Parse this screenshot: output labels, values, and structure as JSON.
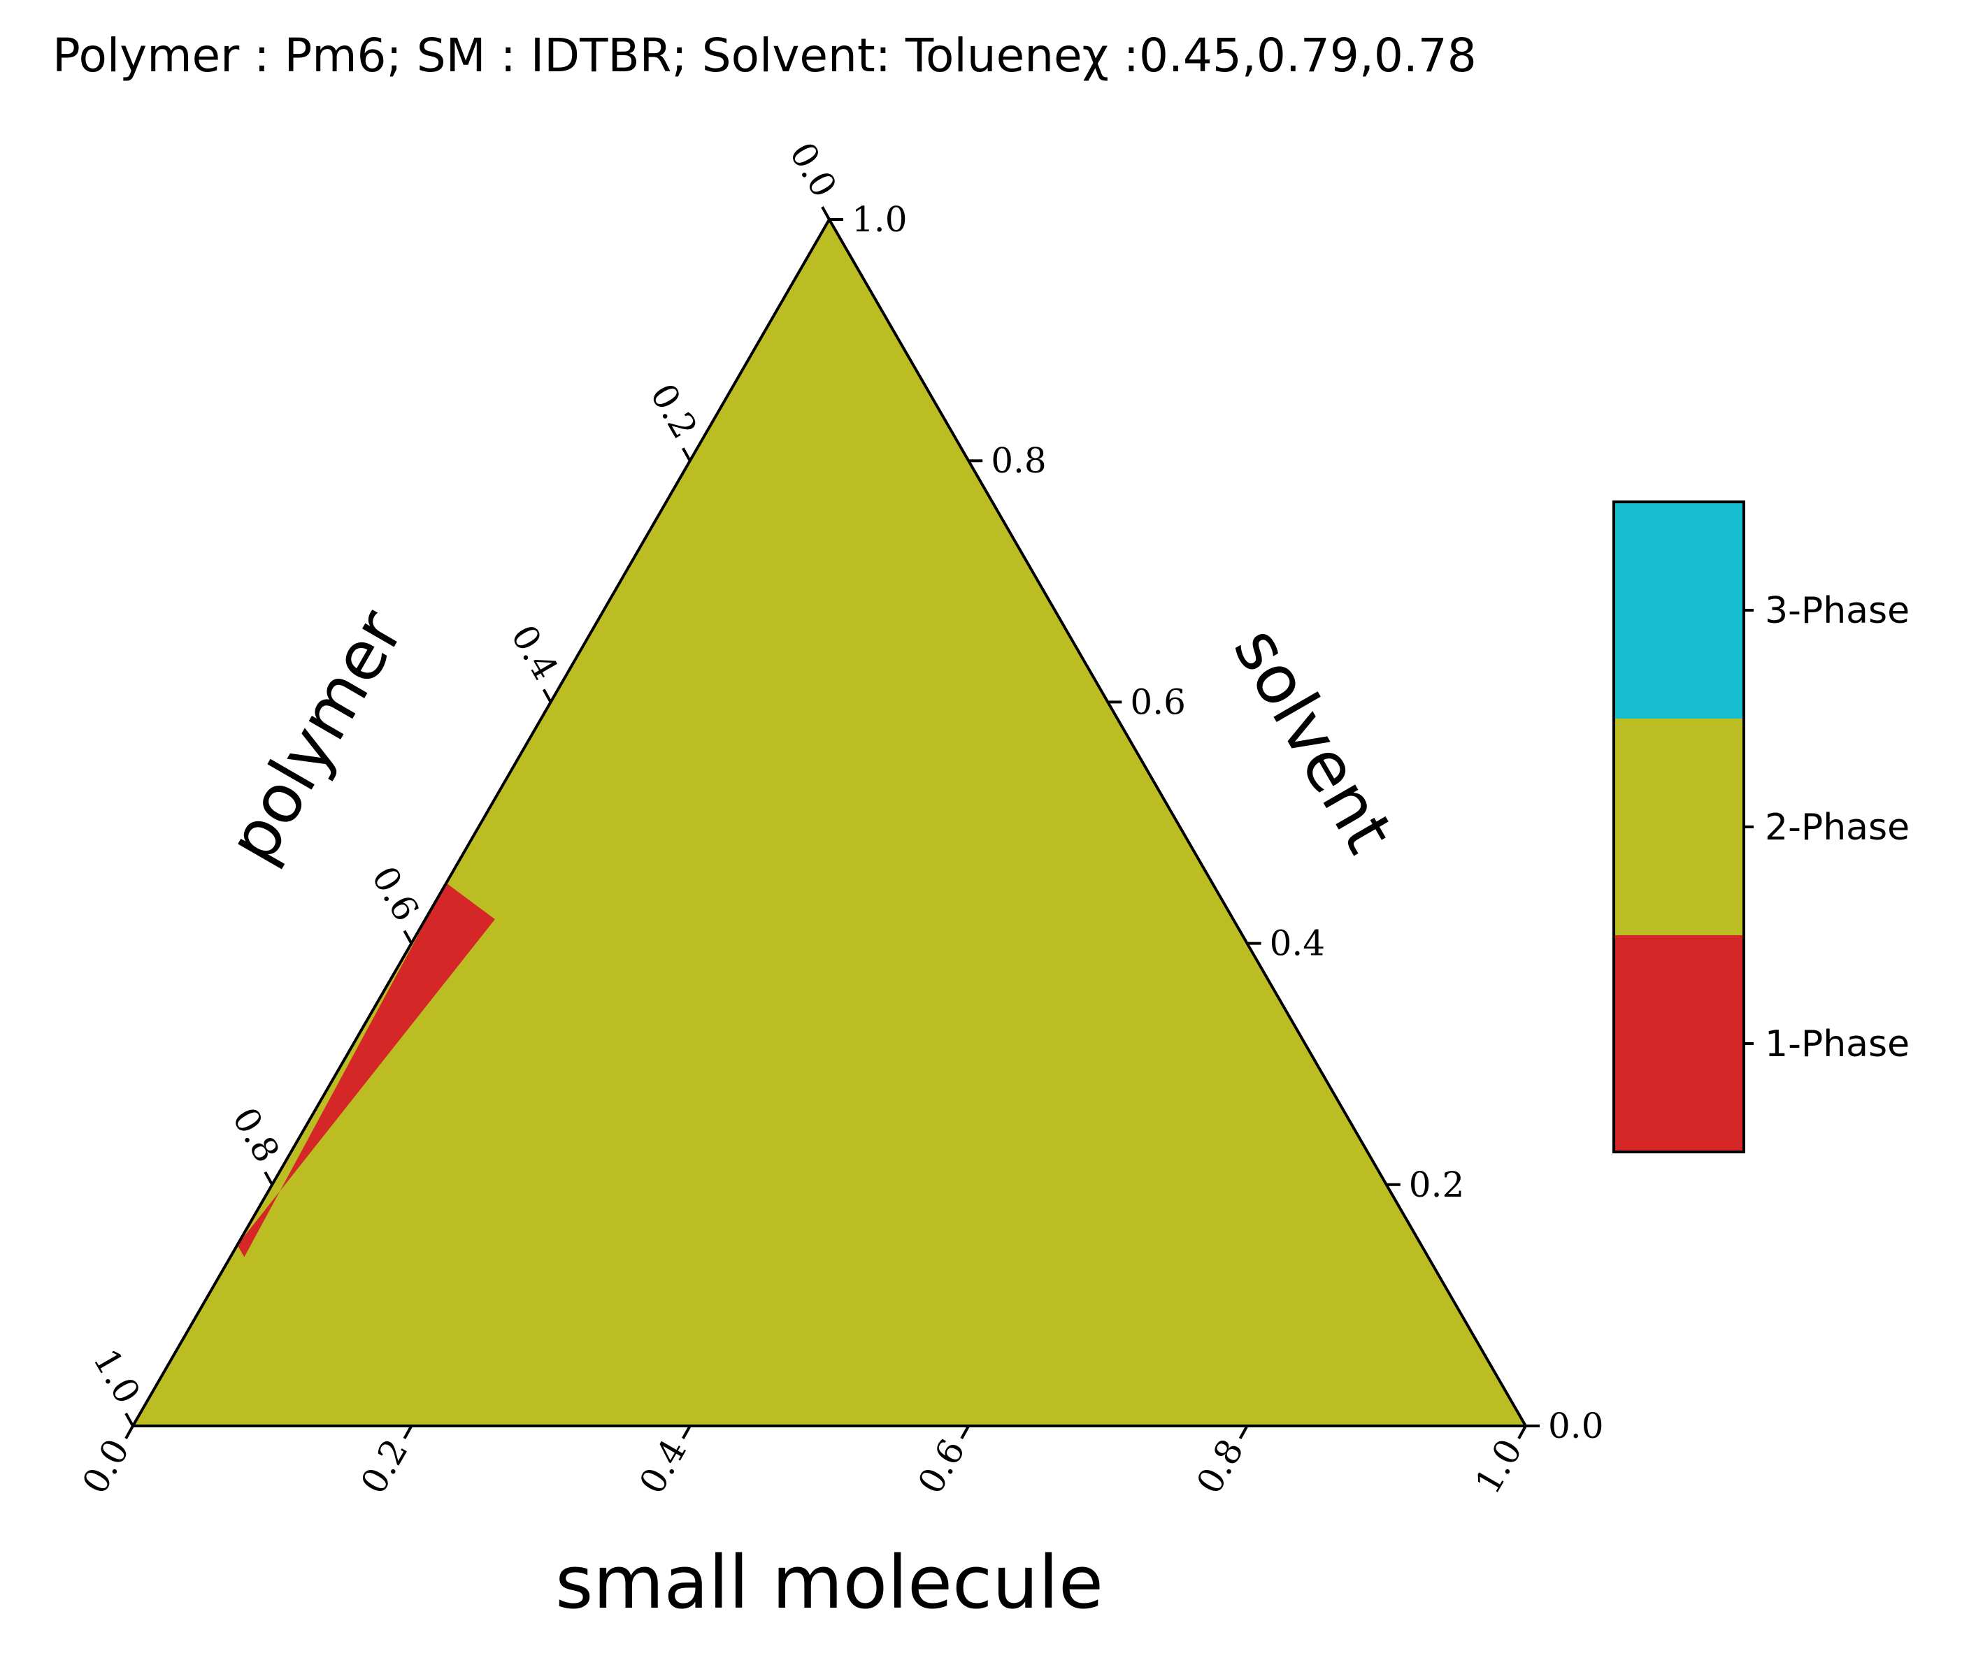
{
  "chart_data": {
    "type": "ternary-phase-diagram",
    "title": "Polymer : Pm6; SM : IDTBR; Solvent: Tolueneχ :0.45,0.79,0.78",
    "axes": {
      "bottom": {
        "label": "small molecule",
        "ticks": [
          "0.0",
          "0.2",
          "0.4",
          "0.6",
          "0.8",
          "1.0"
        ]
      },
      "right": {
        "label": "solvent",
        "ticks": [
          "0.0",
          "0.2",
          "0.4",
          "0.6",
          "0.8",
          "1.0"
        ]
      },
      "left": {
        "label": "polymer",
        "ticks": [
          "0.0",
          "0.2",
          "0.4",
          "0.6",
          "0.8",
          "1.0"
        ]
      }
    },
    "range": [
      0,
      1
    ],
    "background_phase": "2-Phase",
    "regions": [
      {
        "phase": "1-Phase",
        "description_points": [
          {
            "small_molecule": 0.0,
            "solvent": 0.45
          },
          {
            "small_molecule": 0.05,
            "solvent": 0.42
          },
          {
            "small_molecule": 0.0,
            "solvent": 0.15
          },
          {
            "small_molecule": 0.01,
            "solvent": 0.14
          }
        ]
      }
    ],
    "colorbar": {
      "categories": [
        "1-Phase",
        "2-Phase",
        "3-Phase"
      ],
      "colors": [
        "#d62728",
        "#bcbd22",
        "#17becf"
      ]
    }
  },
  "colors": {
    "phase1": "#d62728",
    "phase2": "#bcbd22",
    "phase3": "#17becf",
    "axis": "#000000"
  }
}
